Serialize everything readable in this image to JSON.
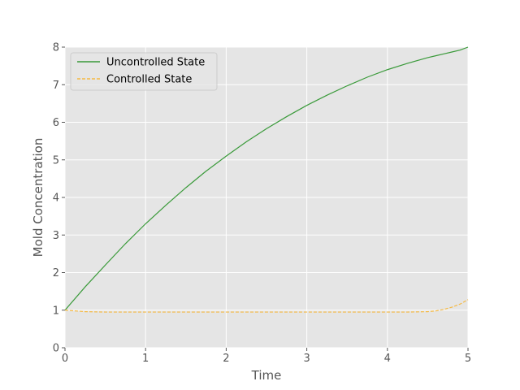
{
  "chart_data": {
    "type": "line",
    "title": "",
    "xlabel": "Time",
    "ylabel": "Mold Concentration",
    "xlim": [
      0,
      5
    ],
    "ylim": [
      0,
      8
    ],
    "xticks": [
      "0",
      "1",
      "2",
      "3",
      "4",
      "5"
    ],
    "yticks": [
      "0",
      "1",
      "2",
      "3",
      "4",
      "5",
      "6",
      "7",
      "8"
    ],
    "grid": true,
    "background": "#e5e5e5",
    "legend_position": "top-left",
    "x": [
      0,
      0.25,
      0.5,
      0.75,
      1,
      1.25,
      1.5,
      1.75,
      2,
      2.25,
      2.5,
      2.75,
      3,
      3.25,
      3.5,
      3.75,
      4,
      4.25,
      4.5,
      4.6,
      4.7,
      4.8,
      4.9,
      5
    ],
    "series": [
      {
        "name": "Uncontrolled State",
        "color": "#3a9a3a",
        "style": "solid",
        "values": [
          1.0,
          1.62,
          2.2,
          2.77,
          3.3,
          3.79,
          4.26,
          4.7,
          5.1,
          5.48,
          5.83,
          6.15,
          6.45,
          6.72,
          6.97,
          7.2,
          7.4,
          7.57,
          7.72,
          7.77,
          7.82,
          7.87,
          7.92,
          8.0
        ]
      },
      {
        "name": "Controlled State",
        "color": "#f5b942",
        "style": "dashed",
        "values": [
          1.0,
          0.96,
          0.95,
          0.95,
          0.95,
          0.95,
          0.95,
          0.95,
          0.95,
          0.95,
          0.95,
          0.95,
          0.95,
          0.95,
          0.95,
          0.95,
          0.95,
          0.95,
          0.96,
          0.98,
          1.02,
          1.08,
          1.16,
          1.28
        ]
      }
    ]
  }
}
